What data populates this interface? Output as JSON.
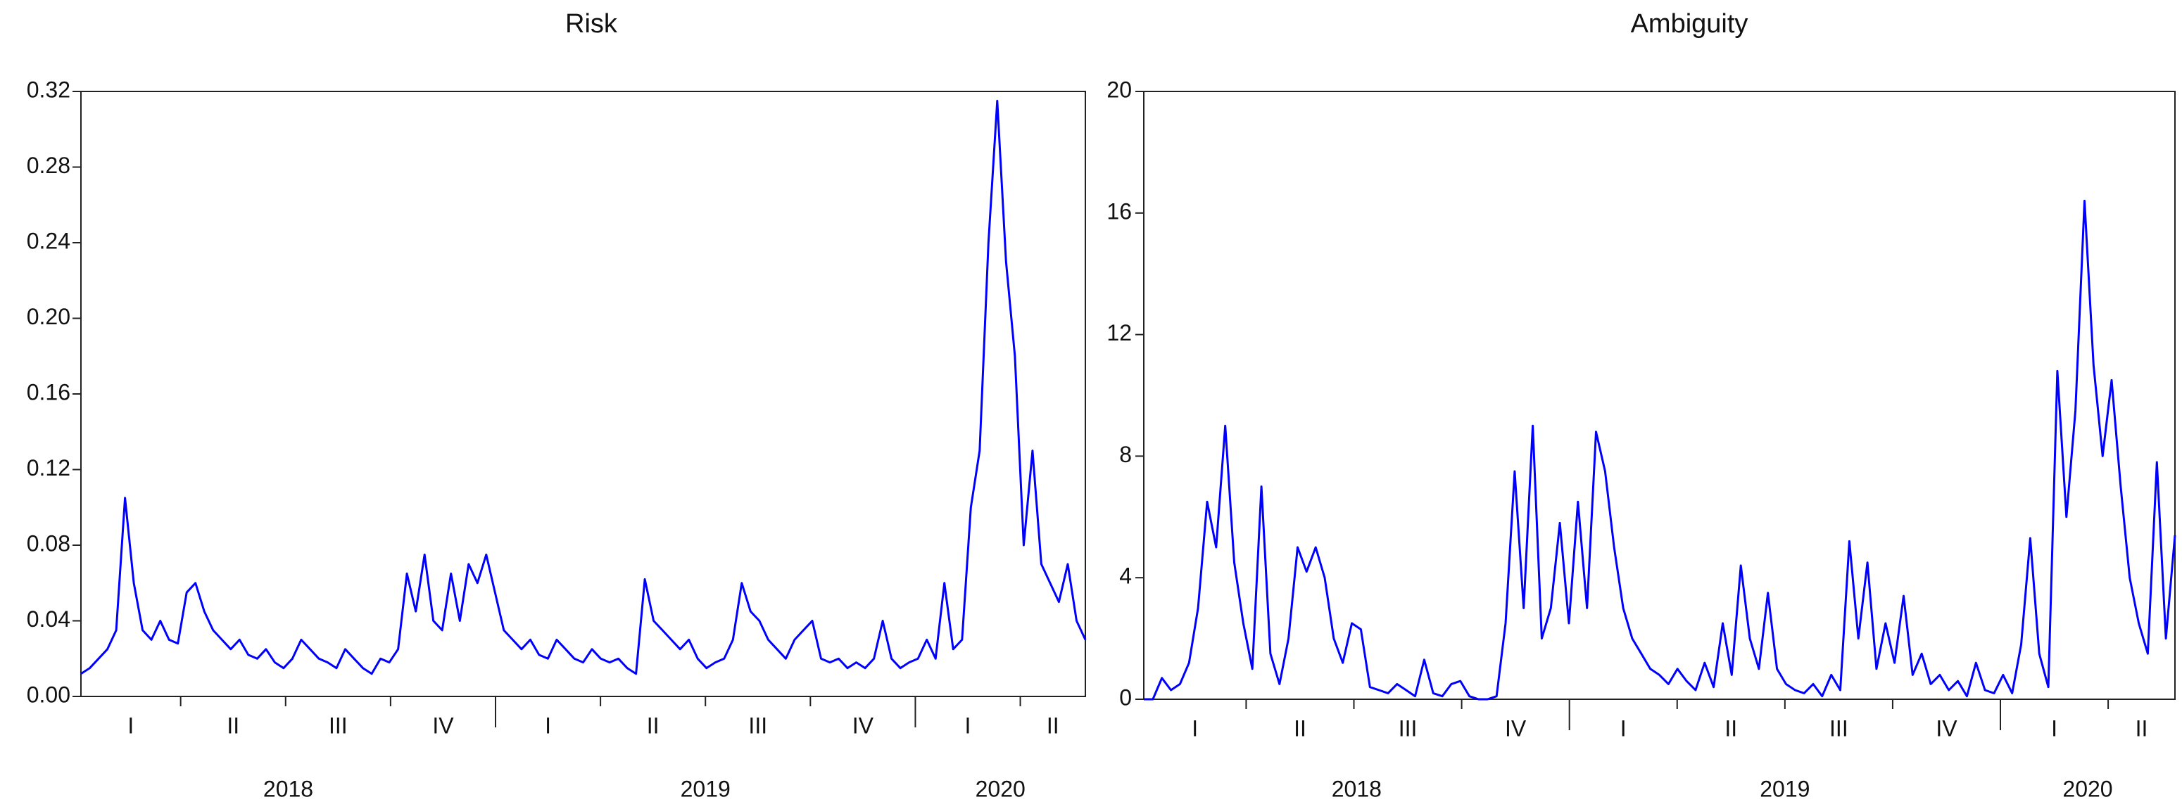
{
  "chart_data": [
    {
      "type": "line",
      "title": "Risk",
      "series": [
        {
          "color": "#0000ff",
          "values": [
            0.012,
            0.015,
            0.02,
            0.025,
            0.035,
            0.105,
            0.06,
            0.035,
            0.03,
            0.04,
            0.03,
            0.028,
            0.055,
            0.06,
            0.045,
            0.035,
            0.03,
            0.025,
            0.03,
            0.022,
            0.02,
            0.025,
            0.018,
            0.015,
            0.02,
            0.03,
            0.025,
            0.02,
            0.018,
            0.015,
            0.025,
            0.02,
            0.015,
            0.012,
            0.02,
            0.018,
            0.025,
            0.065,
            0.045,
            0.075,
            0.04,
            0.035,
            0.065,
            0.04,
            0.07,
            0.06,
            0.075,
            0.055,
            0.035,
            0.03,
            0.025,
            0.03,
            0.022,
            0.02,
            0.03,
            0.025,
            0.02,
            0.018,
            0.025,
            0.02,
            0.018,
            0.02,
            0.015,
            0.012,
            0.062,
            0.04,
            0.035,
            0.03,
            0.025,
            0.03,
            0.02,
            0.015,
            0.018,
            0.02,
            0.03,
            0.06,
            0.045,
            0.04,
            0.03,
            0.025,
            0.02,
            0.03,
            0.035,
            0.04,
            0.02,
            0.018,
            0.02,
            0.015,
            0.018,
            0.015,
            0.02,
            0.04,
            0.02,
            0.015,
            0.018,
            0.02,
            0.03,
            0.02,
            0.06,
            0.025,
            0.03,
            0.1,
            0.13,
            0.24,
            0.315,
            0.23,
            0.18,
            0.08,
            0.13,
            0.07,
            0.06,
            0.05,
            0.07,
            0.04,
            0.03
          ]
        }
      ],
      "ylim": [
        0,
        0.32
      ],
      "yticks": [
        {
          "value": 0,
          "label": "0.00"
        },
        0.04,
        0.08,
        0.12,
        0.16,
        {
          "value": 0.2,
          "label": "0.20"
        },
        0.24,
        0.28,
        0.32
      ],
      "quarters": [
        "I",
        "II",
        "III",
        "IV",
        "I",
        "II",
        "III",
        "IV",
        "I",
        "II"
      ],
      "years": [
        "2018",
        "2019",
        "2020"
      ]
    },
    {
      "type": "line",
      "title": "Ambiguity",
      "series": [
        {
          "color": "#0000ff",
          "values": [
            0,
            0,
            0.7,
            0.3,
            0.5,
            1.2,
            3,
            6.5,
            5,
            9,
            4.5,
            2.5,
            1,
            7,
            1.5,
            0.5,
            2,
            5,
            4.2,
            5,
            4,
            2,
            1.2,
            2.5,
            2.3,
            0.4,
            0.3,
            0.2,
            0.5,
            0.3,
            0.1,
            1.3,
            0.2,
            0.1,
            0.5,
            0.6,
            0.1,
            0,
            0,
            0.1,
            2.5,
            7.5,
            3,
            9,
            2,
            3,
            5.8,
            2.5,
            6.5,
            3,
            8.8,
            7.5,
            5,
            3,
            2,
            1.5,
            1,
            0.8,
            0.5,
            1,
            0.6,
            0.3,
            1.2,
            0.4,
            2.5,
            0.8,
            4.4,
            2,
            1,
            3.5,
            1,
            0.5,
            0.3,
            0.2,
            0.5,
            0.1,
            0.8,
            0.3,
            5.2,
            2,
            4.5,
            1,
            2.5,
            1.2,
            3.4,
            0.8,
            1.5,
            0.5,
            0.8,
            0.3,
            0.6,
            0.1,
            1.2,
            0.3,
            0.2,
            0.8,
            0.2,
            1.8,
            5.3,
            1.5,
            0.4,
            10.8,
            6,
            9.5,
            16.4,
            11,
            8,
            10.5,
            7,
            4,
            2.5,
            1.5,
            7.8,
            2,
            5.4
          ]
        }
      ],
      "ylim": [
        0,
        20
      ],
      "yticks": [
        0,
        4,
        8,
        12,
        16,
        20
      ],
      "quarters": [
        "I",
        "II",
        "III",
        "IV",
        "I",
        "II",
        "III",
        "IV",
        "I",
        "II"
      ],
      "years": [
        "2018",
        "2019",
        "2020"
      ]
    }
  ]
}
